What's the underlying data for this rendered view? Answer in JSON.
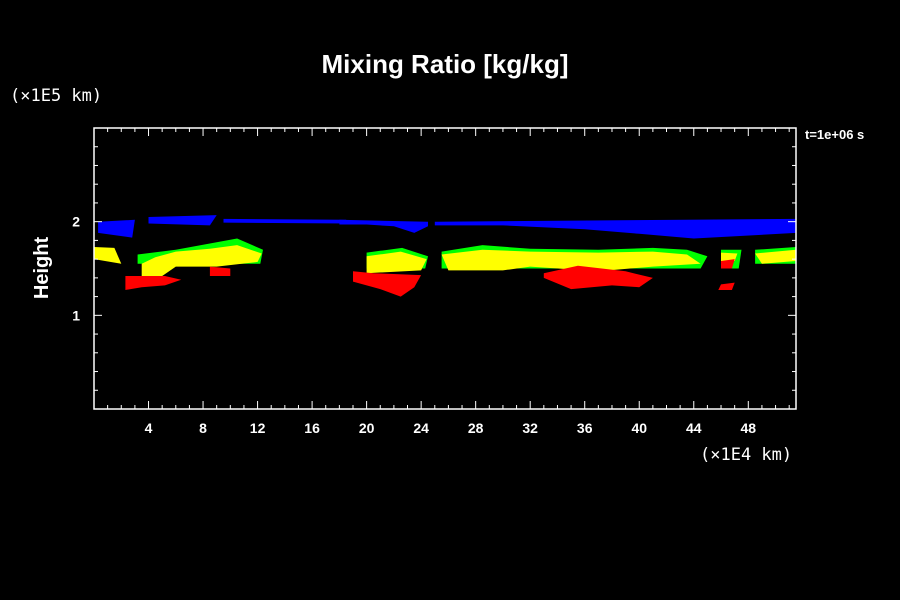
{
  "chart_data": {
    "type": "area",
    "title": "Mixing Ratio [kg/kg]",
    "ylabel": "Height",
    "xunit": "(×1E4 km)",
    "yunit": "(×1E5 km)",
    "time_label": "t=1e+06 s",
    "xlim": [
      0,
      51.5
    ],
    "ylim": [
      0,
      3
    ],
    "x_ticks": [
      4,
      8,
      12,
      16,
      20,
      24,
      28,
      32,
      36,
      40,
      44,
      48
    ],
    "y_ticks": [
      1,
      2
    ],
    "grid": false,
    "series": [
      {
        "color": "#0000ff",
        "regions": [
          [
            [
              0.3,
              2.0
            ],
            [
              3.0,
              2.02
            ],
            [
              2.8,
              1.83
            ],
            [
              0.3,
              1.88
            ]
          ],
          [
            [
              4.0,
              2.05
            ],
            [
              9.0,
              2.07
            ],
            [
              8.5,
              1.96
            ],
            [
              4.0,
              1.98
            ]
          ],
          [
            [
              9.5,
              2.03
            ],
            [
              18.5,
              2.02
            ],
            [
              18.5,
              1.98
            ],
            [
              9.5,
              1.99
            ]
          ],
          [
            [
              18.0,
              2.02
            ],
            [
              24.5,
              2.0
            ],
            [
              24.5,
              1.95
            ],
            [
              23.5,
              1.88
            ],
            [
              22.0,
              1.95
            ],
            [
              20.0,
              1.97
            ],
            [
              18.0,
              1.97
            ]
          ],
          [
            [
              25.0,
              2.0
            ],
            [
              51.5,
              2.03
            ],
            [
              51.5,
              1.88
            ],
            [
              44.0,
              1.82
            ],
            [
              40.0,
              1.87
            ],
            [
              36.0,
              1.92
            ],
            [
              30.0,
              1.96
            ],
            [
              25.0,
              1.96
            ]
          ]
        ]
      },
      {
        "color": "#00ff00",
        "regions": [
          [
            [
              3.2,
              1.65
            ],
            [
              6.0,
              1.7
            ],
            [
              10.5,
              1.82
            ],
            [
              12.4,
              1.7
            ],
            [
              12.2,
              1.55
            ],
            [
              3.2,
              1.55
            ]
          ],
          [
            [
              20.0,
              1.67
            ],
            [
              22.6,
              1.72
            ],
            [
              24.5,
              1.63
            ],
            [
              24.3,
              1.5
            ],
            [
              20.0,
              1.5
            ]
          ],
          [
            [
              25.5,
              1.68
            ],
            [
              28.5,
              1.75
            ],
            [
              32.0,
              1.71
            ],
            [
              37.0,
              1.7
            ],
            [
              41.0,
              1.72
            ],
            [
              43.5,
              1.7
            ],
            [
              45.0,
              1.63
            ],
            [
              44.5,
              1.5
            ],
            [
              25.5,
              1.5
            ]
          ],
          [
            [
              46.0,
              1.7
            ],
            [
              47.5,
              1.7
            ],
            [
              47.3,
              1.5
            ],
            [
              46.0,
              1.5
            ]
          ],
          [
            [
              48.5,
              1.7
            ],
            [
              51.5,
              1.73
            ],
            [
              51.5,
              1.55
            ],
            [
              48.5,
              1.55
            ]
          ]
        ]
      },
      {
        "color": "#ffff00",
        "regions": [
          [
            [
              0.0,
              1.73
            ],
            [
              1.5,
              1.72
            ],
            [
              2.0,
              1.55
            ],
            [
              0.0,
              1.6
            ]
          ],
          [
            [
              3.5,
              1.55
            ],
            [
              4.5,
              1.62
            ],
            [
              6.0,
              1.68
            ],
            [
              8.5,
              1.71
            ],
            [
              10.5,
              1.75
            ],
            [
              12.3,
              1.66
            ],
            [
              12.0,
              1.57
            ],
            [
              9.0,
              1.52
            ],
            [
              6.0,
              1.52
            ],
            [
              5.0,
              1.42
            ],
            [
              3.5,
              1.42
            ]
          ],
          [
            [
              20.0,
              1.63
            ],
            [
              22.5,
              1.68
            ],
            [
              24.4,
              1.6
            ],
            [
              24.0,
              1.48
            ],
            [
              20.0,
              1.45
            ]
          ],
          [
            [
              25.5,
              1.65
            ],
            [
              28.5,
              1.7
            ],
            [
              32.0,
              1.68
            ],
            [
              37.0,
              1.67
            ],
            [
              41.0,
              1.68
            ],
            [
              43.5,
              1.65
            ],
            [
              44.5,
              1.55
            ],
            [
              41.0,
              1.52
            ],
            [
              37.0,
              1.47
            ],
            [
              32.0,
              1.52
            ],
            [
              30.0,
              1.48
            ],
            [
              26.0,
              1.48
            ]
          ],
          [
            [
              46.0,
              1.67
            ],
            [
              47.2,
              1.66
            ],
            [
              47.0,
              1.58
            ],
            [
              46.0,
              1.58
            ]
          ],
          [
            [
              48.5,
              1.66
            ],
            [
              51.5,
              1.7
            ],
            [
              51.5,
              1.58
            ],
            [
              49.0,
              1.55
            ]
          ]
        ]
      },
      {
        "color": "#ff0000",
        "regions": [
          [
            [
              2.3,
              1.42
            ],
            [
              5.2,
              1.42
            ],
            [
              6.4,
              1.38
            ],
            [
              5.2,
              1.32
            ],
            [
              3.5,
              1.3
            ],
            [
              2.3,
              1.27
            ]
          ],
          [
            [
              8.5,
              1.52
            ],
            [
              10.0,
              1.5
            ],
            [
              10.0,
              1.42
            ],
            [
              8.5,
              1.42
            ]
          ],
          [
            [
              19.0,
              1.47
            ],
            [
              20.5,
              1.45
            ],
            [
              24.0,
              1.43
            ],
            [
              23.5,
              1.3
            ],
            [
              22.5,
              1.2
            ],
            [
              21.0,
              1.28
            ],
            [
              19.0,
              1.36
            ]
          ],
          [
            [
              33.0,
              1.45
            ],
            [
              35.5,
              1.53
            ],
            [
              39.0,
              1.47
            ],
            [
              41.0,
              1.4
            ],
            [
              40.0,
              1.3
            ],
            [
              38.0,
              1.32
            ],
            [
              35.0,
              1.28
            ],
            [
              33.0,
              1.4
            ]
          ],
          [
            [
              46.0,
              1.58
            ],
            [
              47.0,
              1.6
            ],
            [
              46.8,
              1.5
            ],
            [
              46.0,
              1.5
            ]
          ],
          [
            [
              46.0,
              1.33
            ],
            [
              47.0,
              1.35
            ],
            [
              46.8,
              1.27
            ],
            [
              45.8,
              1.27
            ]
          ]
        ]
      }
    ]
  }
}
